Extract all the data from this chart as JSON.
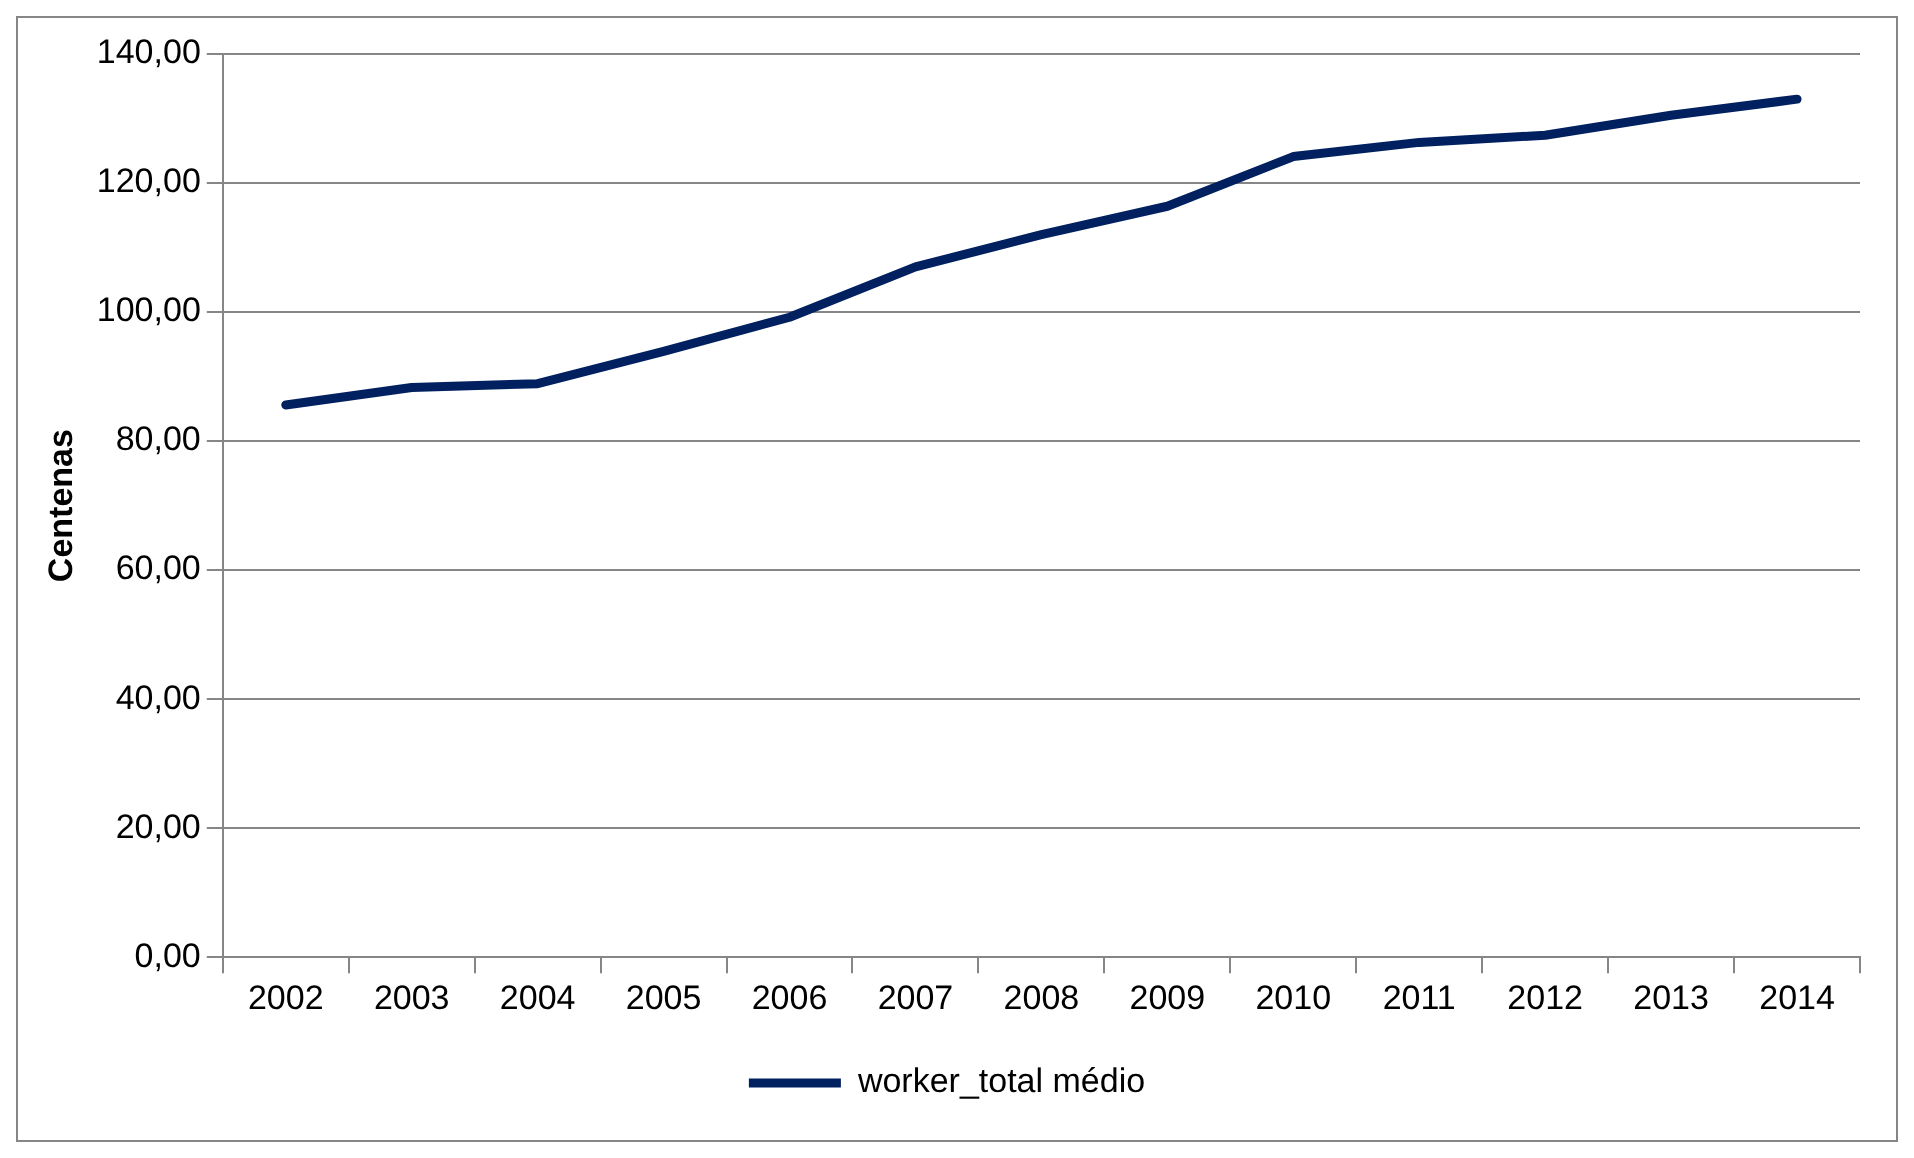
{
  "chart_data": {
    "type": "line",
    "ylabel": "Centenas",
    "categories": [
      "2002",
      "2003",
      "2004",
      "2005",
      "2006",
      "2007",
      "2008",
      "2009",
      "2010",
      "2011",
      "2012",
      "2013",
      "2014"
    ],
    "series": [
      {
        "name": "worker_total médio",
        "color": "#002060",
        "values": [
          85.6,
          88.3,
          88.9,
          93.9,
          99.2,
          107.0,
          112.0,
          116.4,
          124.1,
          126.3,
          127.4,
          130.5,
          133.0
        ]
      }
    ],
    "ylim": [
      0,
      140
    ],
    "yticks": [
      {
        "value": 0,
        "label": "0,00"
      },
      {
        "value": 20,
        "label": "20,00"
      },
      {
        "value": 40,
        "label": "40,00"
      },
      {
        "value": 60,
        "label": "60,00"
      },
      {
        "value": 80,
        "label": "80,00"
      },
      {
        "value": 100,
        "label": "100,00"
      },
      {
        "value": 120,
        "label": "120,00"
      },
      {
        "value": 140,
        "label": "140,00"
      }
    ],
    "grid": "y",
    "legend": "bottom",
    "marker": "none",
    "line_style": "solid"
  }
}
